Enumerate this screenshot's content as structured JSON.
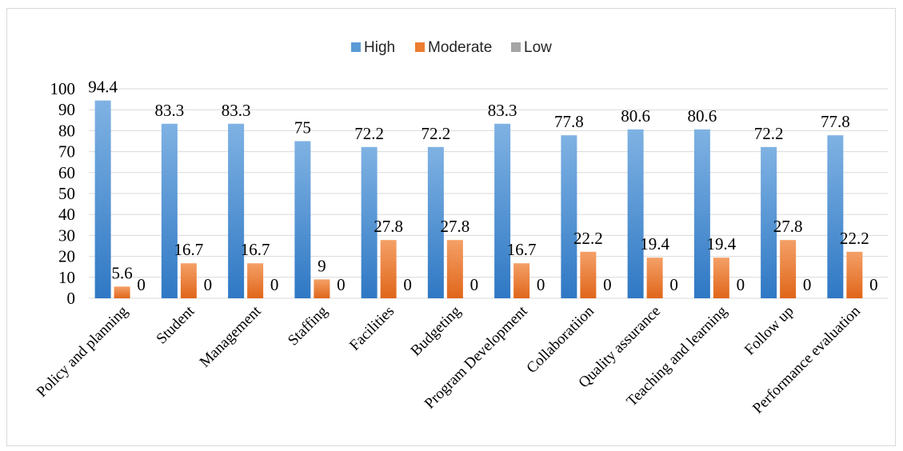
{
  "chart_data": {
    "type": "bar",
    "categories": [
      "Policy and planning",
      "Student",
      "Management",
      "Staffing",
      "Facilities",
      "Budgeting",
      "Program Development",
      "Collaboratiion",
      "Quality assurance",
      "Teaching and learning",
      "Follow up",
      "Performance evaluation"
    ],
    "series": [
      {
        "name": "High",
        "color": "#5b9bd5",
        "values": [
          94.4,
          83.3,
          83.3,
          75,
          72.2,
          72.2,
          83.3,
          77.8,
          80.6,
          80.6,
          72.2,
          77.8
        ]
      },
      {
        "name": "Moderate",
        "color": "#ed7d31",
        "values": [
          5.6,
          16.7,
          16.7,
          9,
          27.8,
          27.8,
          16.7,
          22.2,
          19.4,
          19.4,
          27.8,
          22.2
        ]
      },
      {
        "name": "Low",
        "color": "#a5a5a5",
        "values": [
          0,
          0,
          0,
          0,
          0,
          0,
          0,
          0,
          0,
          0,
          0,
          0
        ]
      }
    ],
    "ylim": [
      0,
      100
    ],
    "yticks": [
      0,
      10,
      20,
      30,
      40,
      50,
      60,
      70,
      80,
      90,
      100
    ],
    "grid": true,
    "legend": "top-center",
    "title": "",
    "xlabel": "",
    "ylabel": ""
  }
}
